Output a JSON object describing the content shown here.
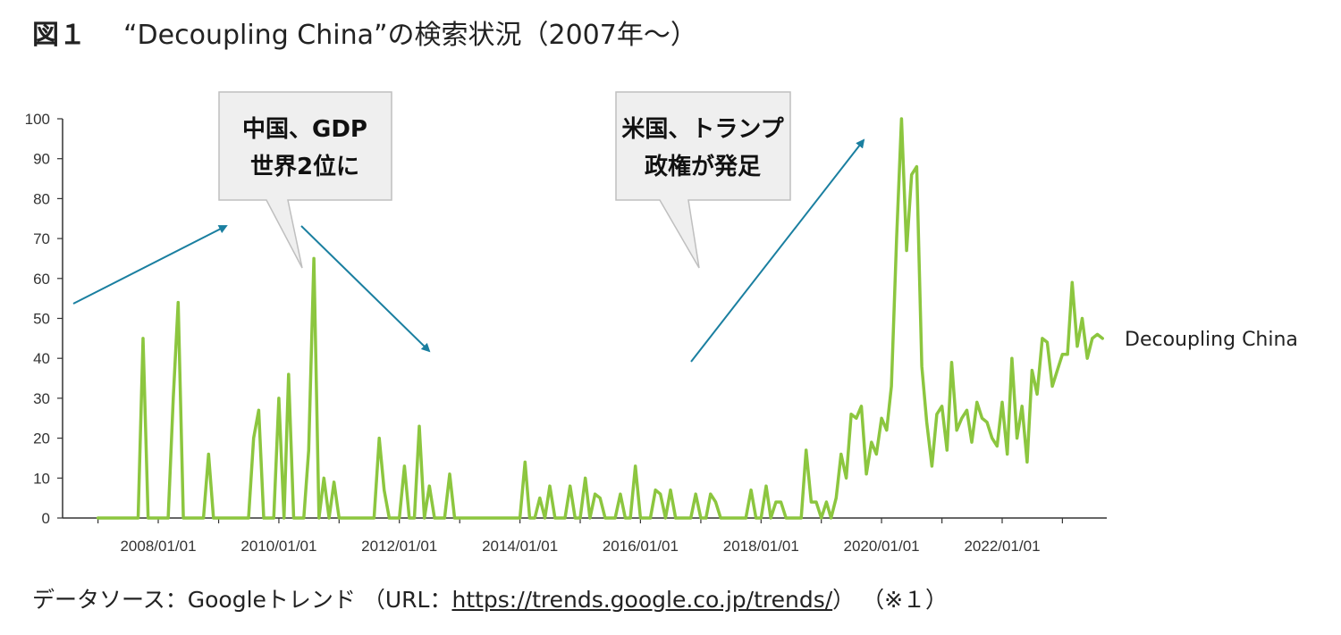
{
  "title": {
    "figure_label": "図１",
    "text": "“Decoupling China”の検索状況（2007年～）"
  },
  "footer": {
    "source_prefix": "データソース：Googleトレンド （URL：",
    "url": "https://trends.google.co.jp/trends/",
    "source_suffix": "） （※１）"
  },
  "callouts": [
    {
      "lines": [
        "中国、GDP",
        "世界2位に"
      ]
    },
    {
      "lines": [
        "米国、トランプ",
        "政権が発足"
      ]
    }
  ],
  "colors": {
    "line": "#8cc63f",
    "arrow": "#1a7fa0",
    "axis": "#333333",
    "callout_fill": "#efefef",
    "callout_stroke": "#bfbfbf"
  },
  "chart_data": {
    "type": "line",
    "xlabel": "",
    "ylabel": "",
    "ylim": [
      0,
      100
    ],
    "yticks": [
      "0",
      "10",
      "20",
      "30",
      "40",
      "50",
      "60",
      "70",
      "80",
      "90",
      "100"
    ],
    "xticks": [
      "2008/01/01",
      "2010/01/01",
      "2012/01/01",
      "2014/01/01",
      "2016/01/01",
      "2018/01/01",
      "2020/01/01",
      "2022/01/01"
    ],
    "x_range": [
      "2007-01",
      "2023-07"
    ],
    "grid": false,
    "legend": "right-end label",
    "series": [
      {
        "name": "Decoupling China",
        "points": [
          [
            "2007-01",
            0
          ],
          [
            "2007-09",
            0
          ],
          [
            "2007-10",
            45
          ],
          [
            "2007-11",
            0
          ],
          [
            "2008-03",
            0
          ],
          [
            "2008-04",
            30
          ],
          [
            "2008-05",
            54
          ],
          [
            "2008-06",
            0
          ],
          [
            "2008-10",
            0
          ],
          [
            "2008-11",
            16
          ],
          [
            "2008-12",
            0
          ],
          [
            "2009-07",
            0
          ],
          [
            "2009-08",
            20
          ],
          [
            "2009-09",
            27
          ],
          [
            "2009-10",
            0
          ],
          [
            "2009-12",
            0
          ],
          [
            "2010-01",
            30
          ],
          [
            "2010-02",
            0
          ],
          [
            "2010-03",
            36
          ],
          [
            "2010-04",
            0
          ],
          [
            "2010-06",
            0
          ],
          [
            "2010-07",
            17
          ],
          [
            "2010-08",
            65
          ],
          [
            "2010-09",
            0
          ],
          [
            "2010-10",
            10
          ],
          [
            "2010-11",
            0
          ],
          [
            "2010-12",
            9
          ],
          [
            "2011-01",
            0
          ],
          [
            "2011-08",
            0
          ],
          [
            "2011-09",
            20
          ],
          [
            "2011-10",
            7
          ],
          [
            "2011-11",
            0
          ],
          [
            "2012-01",
            0
          ],
          [
            "2012-02",
            13
          ],
          [
            "2012-03",
            0
          ],
          [
            "2012-04",
            0
          ],
          [
            "2012-05",
            23
          ],
          [
            "2012-06",
            0
          ],
          [
            "2012-07",
            8
          ],
          [
            "2012-08",
            0
          ],
          [
            "2012-10",
            0
          ],
          [
            "2012-11",
            11
          ],
          [
            "2012-12",
            0
          ],
          [
            "2014-01",
            0
          ],
          [
            "2014-02",
            14
          ],
          [
            "2014-03",
            0
          ],
          [
            "2014-04",
            0
          ],
          [
            "2014-05",
            5
          ],
          [
            "2014-06",
            0
          ],
          [
            "2014-07",
            8
          ],
          [
            "2014-08",
            0
          ],
          [
            "2014-10",
            0
          ],
          [
            "2014-11",
            8
          ],
          [
            "2014-12",
            0
          ],
          [
            "2015-01",
            0
          ],
          [
            "2015-02",
            10
          ],
          [
            "2015-03",
            0
          ],
          [
            "2015-04",
            6
          ],
          [
            "2015-05",
            5
          ],
          [
            "2015-06",
            0
          ],
          [
            "2015-08",
            0
          ],
          [
            "2015-09",
            6
          ],
          [
            "2015-10",
            0
          ],
          [
            "2015-11",
            0
          ],
          [
            "2015-12",
            13
          ],
          [
            "2016-01",
            0
          ],
          [
            "2016-03",
            0
          ],
          [
            "2016-04",
            7
          ],
          [
            "2016-05",
            6
          ],
          [
            "2016-06",
            0
          ],
          [
            "2016-07",
            7
          ],
          [
            "2016-08",
            0
          ],
          [
            "2016-11",
            0
          ],
          [
            "2016-12",
            6
          ],
          [
            "2017-01",
            0
          ],
          [
            "2017-02",
            0
          ],
          [
            "2017-03",
            6
          ],
          [
            "2017-04",
            4
          ],
          [
            "2017-05",
            0
          ],
          [
            "2017-10",
            0
          ],
          [
            "2017-11",
            7
          ],
          [
            "2017-12",
            0
          ],
          [
            "2018-01",
            0
          ],
          [
            "2018-02",
            8
          ],
          [
            "2018-03",
            0
          ],
          [
            "2018-04",
            4
          ],
          [
            "2018-05",
            4
          ],
          [
            "2018-06",
            0
          ],
          [
            "2018-09",
            0
          ],
          [
            "2018-10",
            17
          ],
          [
            "2018-11",
            4
          ],
          [
            "2018-12",
            4
          ],
          [
            "2019-01",
            0
          ],
          [
            "2019-02",
            4
          ],
          [
            "2019-03",
            0
          ],
          [
            "2019-04",
            5
          ],
          [
            "2019-05",
            16
          ],
          [
            "2019-06",
            10
          ],
          [
            "2019-07",
            26
          ],
          [
            "2019-08",
            25
          ],
          [
            "2019-09",
            28
          ],
          [
            "2019-10",
            11
          ],
          [
            "2019-11",
            19
          ],
          [
            "2019-12",
            16
          ],
          [
            "2020-01",
            25
          ],
          [
            "2020-02",
            22
          ],
          [
            "2020-03",
            33
          ],
          [
            "2020-04",
            70
          ],
          [
            "2020-05",
            100
          ],
          [
            "2020-06",
            67
          ],
          [
            "2020-07",
            86
          ],
          [
            "2020-08",
            88
          ],
          [
            "2020-09",
            38
          ],
          [
            "2020-10",
            24
          ],
          [
            "2020-11",
            13
          ],
          [
            "2020-12",
            26
          ],
          [
            "2021-01",
            28
          ],
          [
            "2021-02",
            17
          ],
          [
            "2021-03",
            39
          ],
          [
            "2021-04",
            22
          ],
          [
            "2021-05",
            25
          ],
          [
            "2021-06",
            27
          ],
          [
            "2021-07",
            19
          ],
          [
            "2021-08",
            29
          ],
          [
            "2021-09",
            25
          ],
          [
            "2021-10",
            24
          ],
          [
            "2021-11",
            20
          ],
          [
            "2021-12",
            18
          ],
          [
            "2022-01",
            29
          ],
          [
            "2022-02",
            16
          ],
          [
            "2022-03",
            40
          ],
          [
            "2022-04",
            20
          ],
          [
            "2022-05",
            28
          ],
          [
            "2022-06",
            14
          ],
          [
            "2022-07",
            37
          ],
          [
            "2022-08",
            31
          ],
          [
            "2022-09",
            45
          ],
          [
            "2022-10",
            44
          ],
          [
            "2022-11",
            33
          ],
          [
            "2022-12",
            37
          ],
          [
            "2023-01",
            41
          ],
          [
            "2023-02",
            41
          ],
          [
            "2023-03",
            59
          ],
          [
            "2023-04",
            43
          ],
          [
            "2023-05",
            50
          ],
          [
            "2023-06",
            40
          ],
          [
            "2023-07",
            45
          ],
          [
            "2023-08",
            46
          ],
          [
            "2023-09",
            45
          ]
        ]
      }
    ]
  }
}
